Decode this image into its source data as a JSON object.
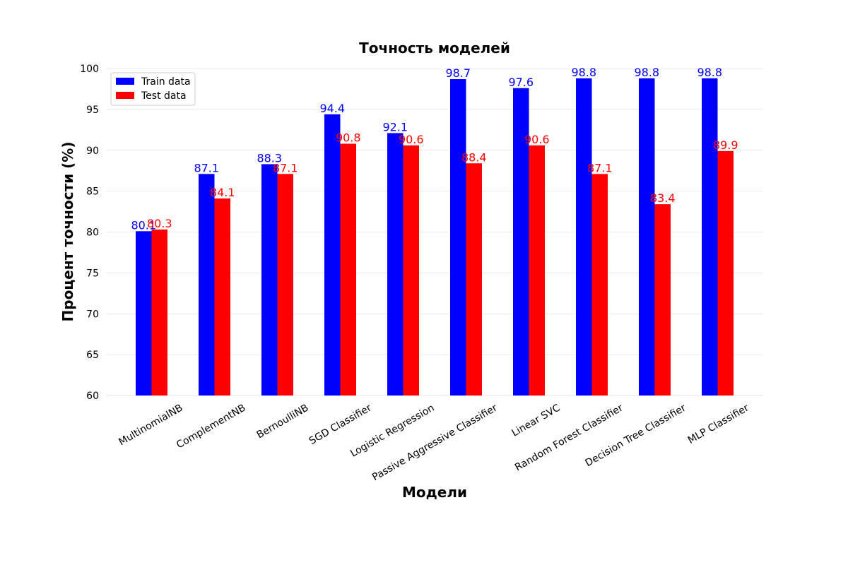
{
  "chart_data": {
    "type": "bar",
    "title": "Точность моделей",
    "xlabel": "Модели",
    "ylabel": "Процент точности (%)",
    "ylim": [
      60,
      100
    ],
    "yticks": [
      60,
      65,
      70,
      75,
      80,
      85,
      90,
      95,
      100
    ],
    "grid": true,
    "legend_position": "top-left",
    "categories": [
      "MultinomialNB",
      "ComplementNB",
      "BernoulliNB",
      "SGD Classifier",
      "Logistic Regression",
      "Passive Aggressive Classifier",
      "Linear SVC",
      "Random Forest Classifier",
      "Decision Tree Classifier",
      "MLP Classifier"
    ],
    "series": [
      {
        "name": "Train data",
        "color": "#0000ff",
        "values": [
          80.1,
          87.1,
          88.3,
          94.4,
          92.1,
          98.7,
          97.6,
          98.8,
          98.8,
          98.8
        ],
        "labels": [
          "80.1",
          "87.1",
          "88.3",
          "94.4",
          "92.1",
          "98.7",
          "97.6",
          "98.8",
          "98.8",
          "98.8"
        ]
      },
      {
        "name": "Test data",
        "color": "#ff0000",
        "values": [
          80.3,
          84.1,
          87.1,
          90.8,
          90.6,
          88.4,
          90.6,
          87.1,
          83.4,
          89.9
        ],
        "labels": [
          "80.3",
          "84.1",
          "87.1",
          "90.8",
          "90.6",
          "88.4",
          "90.6",
          "87.1",
          "83.4",
          "89.9"
        ]
      }
    ]
  }
}
